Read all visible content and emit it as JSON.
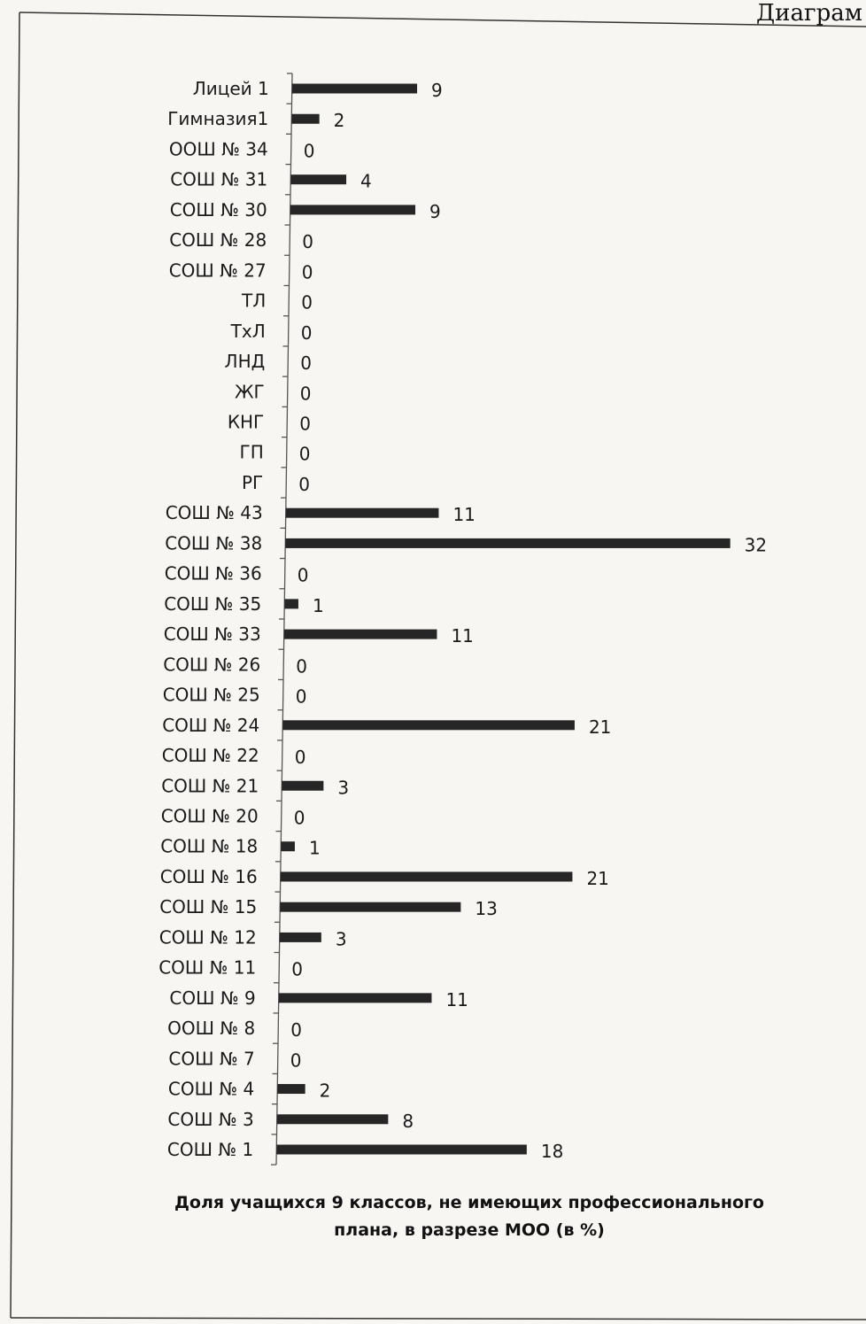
{
  "page": {
    "corner_caption": "Диаграм"
  },
  "chart_data": {
    "type": "bar",
    "orientation": "horizontal",
    "title": "Доля учащихся 9 классов, не имеющих профессионального плана, в разрезе МОО (в %)",
    "title_lines": [
      "Доля учащихся 9 классов, не имеющих профессионального",
      "плана, в разрезе МОО (в %)"
    ],
    "xlabel": "",
    "ylabel": "",
    "xlim": [
      0,
      32
    ],
    "grid": false,
    "legend": "none",
    "bar_color": "#262626",
    "categories": [
      "Лицей 1",
      "Гимназия1",
      "ООШ № 34",
      "СОШ № 31",
      "СОШ № 30",
      "СОШ № 28",
      "СОШ № 27",
      "ТЛ",
      "ТхЛ",
      "ЛНД",
      "ЖГ",
      "КНГ",
      "ГП",
      "РГ",
      "СОШ № 43",
      "СОШ № 38",
      "СОШ № 36",
      "СОШ № 35",
      "СОШ № 33",
      "СОШ № 26",
      "СОШ № 25",
      "СОШ № 24",
      "СОШ № 22",
      "СОШ № 21",
      "СОШ № 20",
      "СОШ № 18",
      "СОШ № 16",
      "СОШ № 15",
      "СОШ № 12",
      "СОШ № 11",
      "СОШ № 9",
      "ООШ № 8",
      "СОШ № 7",
      "СОШ № 4",
      "СОШ № 3",
      "СОШ № 1"
    ],
    "values": [
      9,
      2,
      0,
      4,
      9,
      0,
      0,
      0,
      0,
      0,
      0,
      0,
      0,
      0,
      11,
      32,
      0,
      1,
      11,
      0,
      0,
      21,
      0,
      3,
      0,
      1,
      21,
      13,
      3,
      0,
      11,
      0,
      0,
      2,
      8,
      18
    ]
  }
}
